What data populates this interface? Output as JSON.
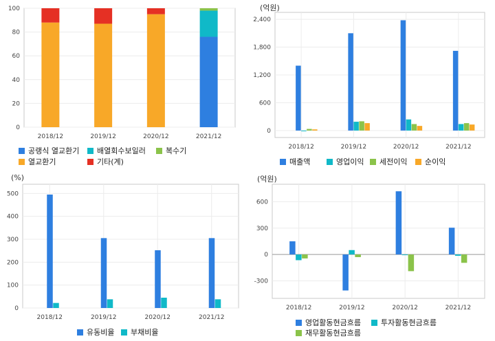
{
  "chart_data": [
    {
      "type": "bar",
      "stacked": true,
      "unit": "",
      "categories": [
        "2018/12",
        "2019/12",
        "2020/12",
        "2021/12"
      ],
      "series": [
        {
          "name": "공랭식 열교환기",
          "color": "#2e7fe0",
          "values": [
            0,
            0,
            0,
            76
          ]
        },
        {
          "name": "배열회수보일러",
          "color": "#10b9c8",
          "values": [
            0,
            0,
            0,
            22
          ]
        },
        {
          "name": "복수기",
          "color": "#8bc34a",
          "values": [
            0,
            0,
            0,
            2
          ]
        },
        {
          "name": "열교환기",
          "color": "#f8a828",
          "values": [
            88,
            87,
            95,
            0
          ]
        },
        {
          "name": "기타(계)",
          "color": "#e53024",
          "values": [
            12,
            13,
            5,
            0
          ]
        }
      ],
      "ylim": [
        0,
        100
      ],
      "yticks": [
        "0",
        "20",
        "40",
        "60",
        "80",
        "100"
      ],
      "grid": true,
      "legend_position": "bottom-left"
    },
    {
      "type": "bar",
      "unit": "(억원)",
      "categories": [
        "2018/12",
        "2019/12",
        "2020/12",
        "2021/12"
      ],
      "series": [
        {
          "name": "매출액",
          "color": "#2e7fe0",
          "values": [
            1400,
            2100,
            2380,
            1720
          ]
        },
        {
          "name": "영업이익",
          "color": "#10b9c8",
          "values": [
            -15,
            190,
            240,
            140
          ]
        },
        {
          "name": "세전이익",
          "color": "#8bc34a",
          "values": [
            35,
            200,
            140,
            160
          ]
        },
        {
          "name": "순이익",
          "color": "#f8a828",
          "values": [
            25,
            160,
            100,
            130
          ]
        }
      ],
      "ylim": [
        -150,
        2550
      ],
      "yticks": [
        "0",
        "600",
        "1,200",
        "1,800",
        "2,400"
      ],
      "grid": true,
      "legend_position": "bottom-left"
    },
    {
      "type": "bar",
      "unit": "(%)",
      "categories": [
        "2018/12",
        "2019/12",
        "2020/12",
        "2021/12"
      ],
      "series": [
        {
          "name": "유동비율",
          "color": "#2e7fe0",
          "values": [
            495,
            305,
            252,
            305
          ]
        },
        {
          "name": "부채비율",
          "color": "#10b9c8",
          "values": [
            22,
            38,
            45,
            38
          ]
        }
      ],
      "ylim": [
        0,
        540
      ],
      "yticks": [
        "0",
        "100",
        "200",
        "300",
        "400",
        "500"
      ],
      "grid": true,
      "legend_position": "bottom-center"
    },
    {
      "type": "bar",
      "unit": "(억원)",
      "categories": [
        "2018/12",
        "2019/12",
        "2020/12",
        "2021/12"
      ],
      "series": [
        {
          "name": "영업활동현금흐름",
          "color": "#2e7fe0",
          "values": [
            150,
            -410,
            720,
            305
          ]
        },
        {
          "name": "투자활동현금흐름",
          "color": "#10b9c8",
          "values": [
            -65,
            50,
            -5,
            -15
          ]
        },
        {
          "name": "재무활동현금흐름",
          "color": "#8bc34a",
          "values": [
            -45,
            -30,
            -190,
            -95
          ]
        }
      ],
      "ylim": [
        -500,
        800
      ],
      "yticks": [
        "-300",
        "0",
        "300",
        "600"
      ],
      "grid": true,
      "legend_position": "bottom-center"
    }
  ]
}
